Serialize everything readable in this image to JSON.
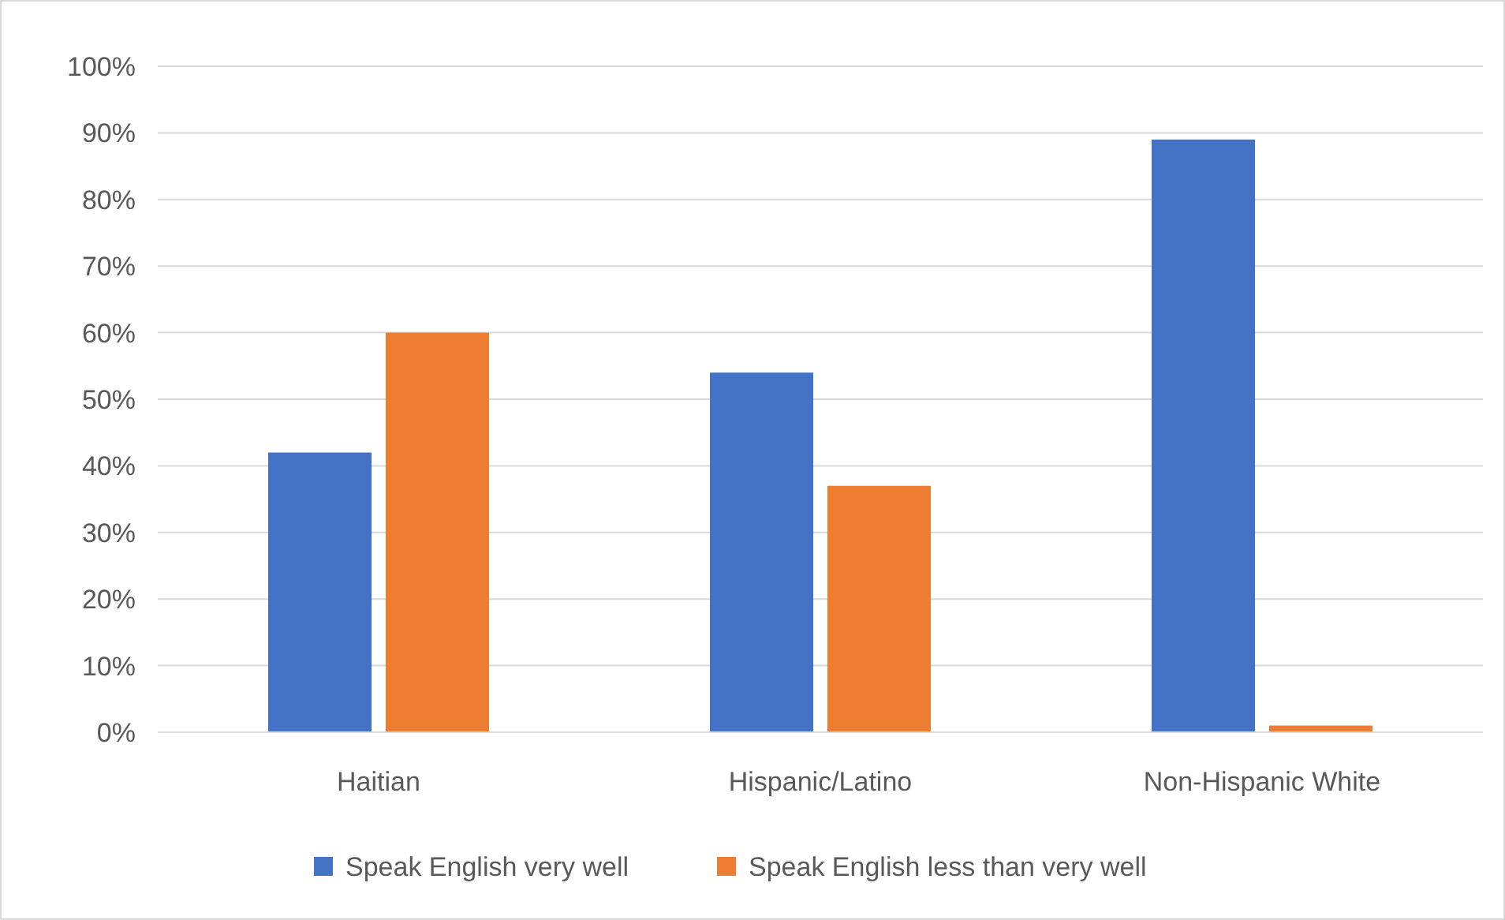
{
  "chart_data": {
    "type": "bar",
    "categories": [
      "Haitian",
      "Hispanic/Latino",
      "Non-Hispanic White"
    ],
    "series": [
      {
        "name": "Speak English very well",
        "color": "#4472c4",
        "values": [
          42,
          54,
          89
        ]
      },
      {
        "name": "Speak English less than very well",
        "color": "#ed7d31",
        "values": [
          60,
          37,
          1
        ]
      }
    ],
    "ylim": [
      0,
      100
    ],
    "yticks": [
      {
        "value": 0,
        "label": "0%"
      },
      {
        "value": 10,
        "label": "10%"
      },
      {
        "value": 20,
        "label": "20%"
      },
      {
        "value": 30,
        "label": "30%"
      },
      {
        "value": 40,
        "label": "40%"
      },
      {
        "value": 50,
        "label": "50%"
      },
      {
        "value": 60,
        "label": "60%"
      },
      {
        "value": 70,
        "label": "70%"
      },
      {
        "value": 80,
        "label": "80%"
      },
      {
        "value": 90,
        "label": "90%"
      },
      {
        "value": 100,
        "label": "100%"
      }
    ],
    "grid": "y",
    "legend": "bottom"
  }
}
